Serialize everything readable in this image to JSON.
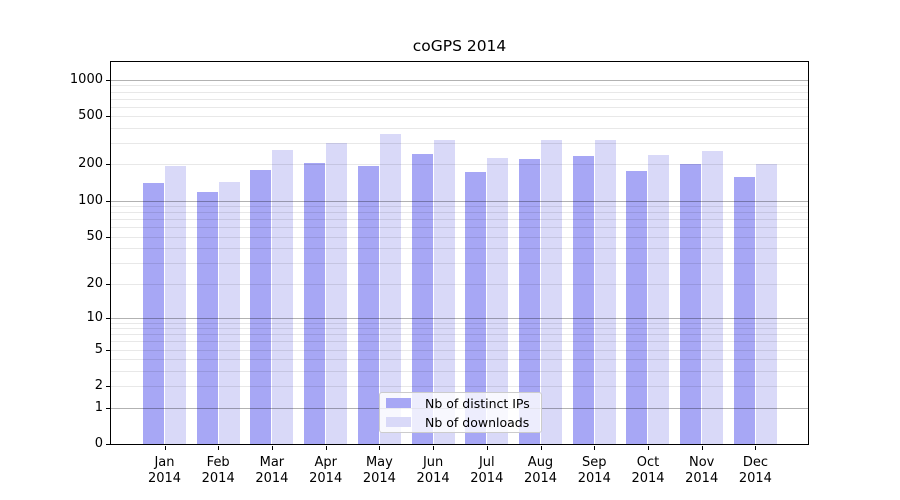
{
  "chart_data": {
    "type": "bar",
    "title": "coGPS 2014",
    "categories": [
      "Jan",
      "Feb",
      "Mar",
      "Apr",
      "May",
      "Jun",
      "Jul",
      "Aug",
      "Sep",
      "Oct",
      "Nov",
      "Dec"
    ],
    "x_tick_year": "2014",
    "series": [
      {
        "name": "Nb of distinct IPs",
        "color": "#a7a7f5",
        "values": [
          139,
          118,
          179,
          207,
          193,
          242,
          174,
          220,
          234,
          177,
          202,
          157
        ]
      },
      {
        "name": "Nb of downloads",
        "color": "#d9d9f8",
        "values": [
          193,
          143,
          262,
          301,
          357,
          318,
          228,
          321,
          321,
          238,
          258,
          203
        ]
      }
    ],
    "y_scale": "log10(1+x)",
    "y_tick_values": [
      0,
      1,
      2,
      5,
      10,
      20,
      50,
      100,
      200,
      500,
      1000
    ],
    "ylim": [
      0,
      1400
    ],
    "xlabel": "",
    "ylabel": "",
    "grid": "both",
    "legend_position": "lower center"
  },
  "colors": {
    "background": "#ffffff",
    "spine": "#000000",
    "major_grid": "#b0b0b0",
    "minor_grid": "#e8e8e8",
    "legend_border": "#cccccc",
    "bar_ips": "#a7a7f5",
    "bar_downloads": "#d9d9f8"
  }
}
